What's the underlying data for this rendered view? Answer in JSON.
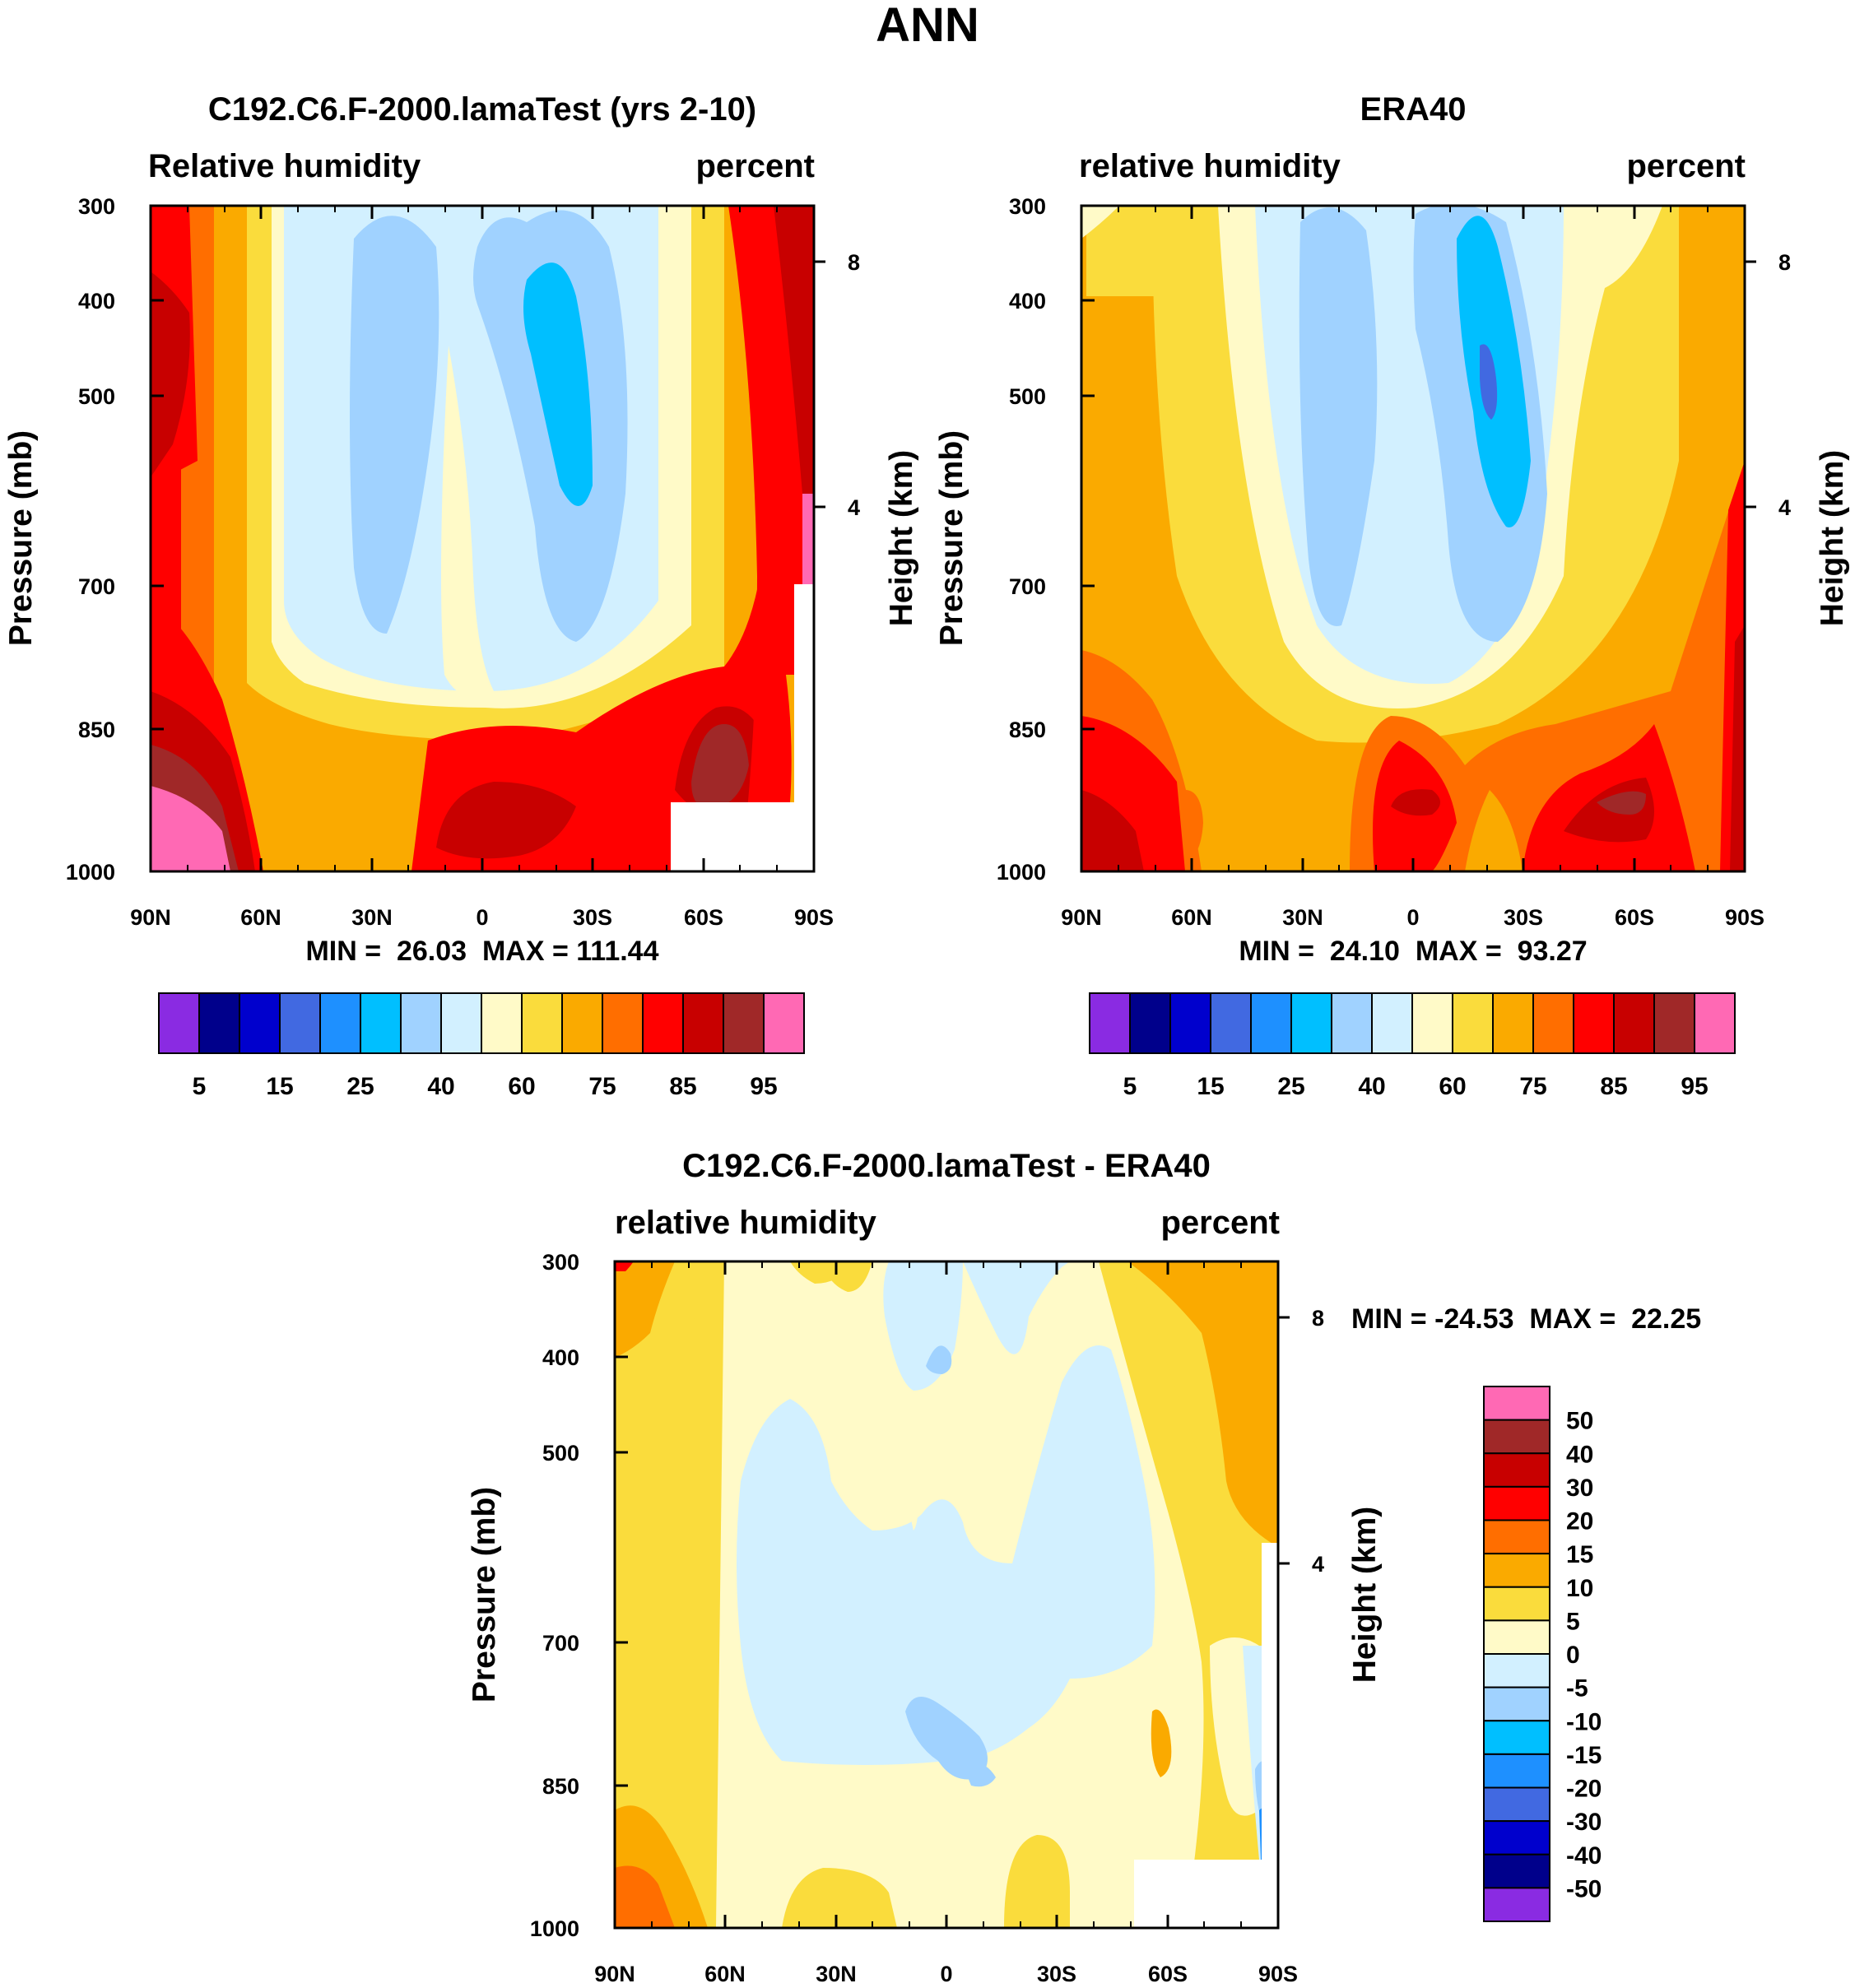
{
  "figure_title": "ANN",
  "colors": {
    "seq": [
      "#8a2be2",
      "#00008b",
      "#0000cd",
      "#4169e1",
      "#1e90ff",
      "#00bfff",
      "#a0d2ff",
      "#d2f0ff",
      "#fffac8",
      "#fadc3c",
      "#faaa00",
      "#ff6e00",
      "#ff0000",
      "#c80000",
      "#a02828",
      "#ff69b4"
    ],
    "diff": [
      "#8a2be2",
      "#00008b",
      "#0000cd",
      "#4169e1",
      "#1e90ff",
      "#00bfff",
      "#a0d2ff",
      "#d2f0ff",
      "#fffac8",
      "#fadc3c",
      "#faaa00",
      "#ff6e00",
      "#ff0000",
      "#c80000",
      "#a02828",
      "#ff69b4"
    ]
  },
  "chart_data": [
    {
      "type": "heatmap",
      "title": "C192.C6.F-2000.lamaTest (yrs 2-10)",
      "left_label": "Relative humidity",
      "right_label": "percent",
      "ylabel": "Pressure (mb)",
      "ylabel_right": "Height (km)",
      "x_ticks": [
        "90N",
        "60N",
        "30N",
        "0",
        "30S",
        "60S",
        "90S"
      ],
      "y_ticks": [
        "300",
        "400",
        "500",
        "700",
        "850",
        "1000"
      ],
      "y_ticks_right": [
        "8",
        "4"
      ],
      "stats": "MIN =  26.03  MAX = 111.44",
      "min": 26.03,
      "max": 111.44,
      "colorbar_labels": [
        "5",
        "15",
        "25",
        "40",
        "60",
        "75",
        "85",
        "95"
      ],
      "levels": [
        5,
        10,
        15,
        20,
        25,
        30,
        40,
        50,
        60,
        70,
        75,
        80,
        85,
        90,
        95
      ]
    },
    {
      "type": "heatmap",
      "title": "ERA40",
      "left_label": "relative humidity",
      "right_label": "percent",
      "ylabel": "Pressure (mb)",
      "ylabel_right": "Height (km)",
      "x_ticks": [
        "90N",
        "60N",
        "30N",
        "0",
        "30S",
        "60S",
        "90S"
      ],
      "y_ticks": [
        "300",
        "400",
        "500",
        "700",
        "850",
        "1000"
      ],
      "y_ticks_right": [
        "8",
        "4"
      ],
      "stats": "MIN =  24.10  MAX =  93.27",
      "min": 24.1,
      "max": 93.27,
      "colorbar_labels": [
        "5",
        "15",
        "25",
        "40",
        "60",
        "75",
        "85",
        "95"
      ],
      "levels": [
        5,
        10,
        15,
        20,
        25,
        30,
        40,
        50,
        60,
        70,
        75,
        80,
        85,
        90,
        95
      ]
    },
    {
      "type": "heatmap",
      "title": "C192.C6.F-2000.lamaTest - ERA40",
      "left_label": "relative humidity",
      "right_label": "percent",
      "ylabel": "Pressure (mb)",
      "ylabel_right": "Height (km)",
      "x_ticks": [
        "90N",
        "60N",
        "30N",
        "0",
        "30S",
        "60S",
        "90S"
      ],
      "y_ticks": [
        "300",
        "400",
        "500",
        "700",
        "850",
        "1000"
      ],
      "y_ticks_right": [
        "8",
        "4"
      ],
      "stats": "MIN = -24.53  MAX =  22.25",
      "min": -24.53,
      "max": 22.25,
      "colorbar_labels": [
        "50",
        "40",
        "30",
        "20",
        "15",
        "10",
        "5",
        "0",
        "-5",
        "-10",
        "-15",
        "-20",
        "-30",
        "-40",
        "-50"
      ],
      "levels": [
        -50,
        -40,
        -30,
        -20,
        -15,
        -10,
        -5,
        0,
        5,
        10,
        15,
        20,
        30,
        40,
        50
      ]
    }
  ]
}
